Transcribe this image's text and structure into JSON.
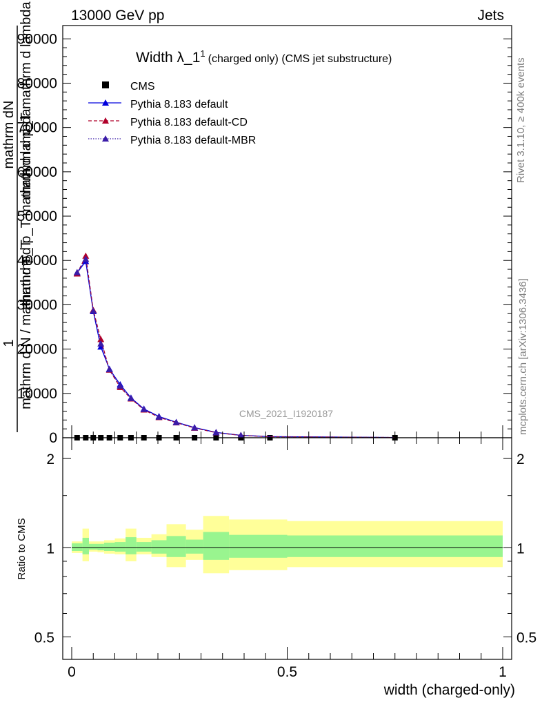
{
  "header": {
    "left": "13000 GeV pp",
    "right": "Jets"
  },
  "side_texts": {
    "rivet": "Rivet 3.1.10, ≥ 400k events",
    "mcplots": "mcplots.cern.ch [arXiv:1306.3436]"
  },
  "chart_data": [
    {
      "type": "scatter",
      "title": "Width λ_1",
      "title_sup": "1",
      "subtitle": "(charged only) (CMS jet substructure)",
      "watermark": "CMS_2021_I1920187",
      "ylabel_numerator": "1",
      "ylabel_lines": [
        "mathrm dN",
        "mathrm d p_T  mathrm d lambda",
        "mathrm d p_T mathrm d lambda"
      ],
      "ylabel_denominator": "mathrm d N / mathrm d p_T",
      "ylim": [
        0,
        93000
      ],
      "y_ticks": [
        0,
        10000,
        20000,
        30000,
        40000,
        50000,
        60000,
        70000,
        80000,
        90000
      ],
      "xlim": [
        -0.02,
        1.02
      ],
      "legend_position": "top-left",
      "x": [
        0.0125,
        0.0325,
        0.05,
        0.0675,
        0.0875,
        0.1125,
        0.1375,
        0.1675,
        0.2025,
        0.2425,
        0.285,
        0.335,
        0.3925,
        0.46,
        0.75
      ],
      "series": [
        {
          "name": "CMS",
          "marker": "square",
          "color": "#000000",
          "dash": "",
          "values": [
            0,
            0,
            0,
            0,
            0,
            0,
            0,
            0,
            0,
            0,
            0,
            0,
            0,
            0,
            0
          ]
        },
        {
          "name": "Pythia 8.183 default",
          "marker": "triangle",
          "color": "#0000dd",
          "dash": "",
          "values": [
            37200,
            39800,
            28500,
            20500,
            15500,
            12000,
            9000,
            6500,
            4800,
            3500,
            2300,
            1200,
            550,
            250,
            60
          ]
        },
        {
          "name": "Pythia 8.183 default-CD",
          "marker": "triangle",
          "color": "#b0002a",
          "dash": "5,3",
          "values": [
            37000,
            41000,
            28800,
            22200,
            15300,
            11400,
            8800,
            6300,
            4600,
            3400,
            2200,
            1150,
            520,
            230,
            55
          ]
        },
        {
          "name": "Pythia 8.183 default-MBR",
          "marker": "triangle",
          "color": "#3b1ca8",
          "dash": "1.5,2",
          "values": [
            37300,
            40300,
            28600,
            21200,
            15400,
            11700,
            8900,
            6400,
            4700,
            3450,
            2250,
            1180,
            540,
            240,
            58
          ]
        }
      ]
    },
    {
      "type": "area",
      "ylabel": "Ratio to CMS",
      "xlabel": "width (charged-only)",
      "ylim": [
        0.42,
        2.35
      ],
      "y_scale": "log",
      "y_ticks": [
        0.5,
        1,
        2
      ],
      "y_tick_labels": [
        "0.5",
        "1",
        "2"
      ],
      "xlim": [
        -0.02,
        1.02
      ],
      "x_ticks": [
        0,
        0.5,
        1
      ],
      "x_tick_labels": [
        "0",
        "0.5",
        "1"
      ],
      "bins": [
        {
          "x": [
            0.0,
            0.025
          ],
          "inner": [
            0.975,
            1.035
          ],
          "outer": [
            0.96,
            1.05
          ]
        },
        {
          "x": [
            0.025,
            0.04
          ],
          "inner": [
            0.95,
            1.08
          ],
          "outer": [
            0.9,
            1.16
          ]
        },
        {
          "x": [
            0.04,
            0.06
          ],
          "inner": [
            0.985,
            1.03
          ],
          "outer": [
            0.97,
            1.05
          ]
        },
        {
          "x": [
            0.06,
            0.075
          ],
          "inner": [
            0.98,
            1.03
          ],
          "outer": [
            0.965,
            1.05
          ]
        },
        {
          "x": [
            0.075,
            0.1
          ],
          "inner": [
            0.975,
            1.04
          ],
          "outer": [
            0.955,
            1.06
          ]
        },
        {
          "x": [
            0.1,
            0.125
          ],
          "inner": [
            0.97,
            1.045
          ],
          "outer": [
            0.95,
            1.075
          ]
        },
        {
          "x": [
            0.125,
            0.15
          ],
          "inner": [
            0.95,
            1.085
          ],
          "outer": [
            0.9,
            1.16
          ]
        },
        {
          "x": [
            0.15,
            0.185
          ],
          "inner": [
            0.97,
            1.045
          ],
          "outer": [
            0.95,
            1.08
          ]
        },
        {
          "x": [
            0.185,
            0.22
          ],
          "inner": [
            0.955,
            1.06
          ],
          "outer": [
            0.93,
            1.11
          ]
        },
        {
          "x": [
            0.22,
            0.265
          ],
          "inner": [
            0.93,
            1.095
          ],
          "outer": [
            0.86,
            1.2
          ]
        },
        {
          "x": [
            0.265,
            0.305
          ],
          "inner": [
            0.955,
            1.065
          ],
          "outer": [
            0.91,
            1.15
          ]
        },
        {
          "x": [
            0.305,
            0.365
          ],
          "inner": [
            0.91,
            1.13
          ],
          "outer": [
            0.82,
            1.28
          ]
        },
        {
          "x": [
            0.365,
            0.42
          ],
          "inner": [
            0.925,
            1.105
          ],
          "outer": [
            0.84,
            1.245
          ]
        },
        {
          "x": [
            0.42,
            0.5
          ],
          "inner": [
            0.925,
            1.105
          ],
          "outer": [
            0.84,
            1.245
          ]
        },
        {
          "x": [
            0.5,
            1.0
          ],
          "inner": [
            0.93,
            1.1
          ],
          "outer": [
            0.86,
            1.23
          ]
        }
      ]
    }
  ]
}
